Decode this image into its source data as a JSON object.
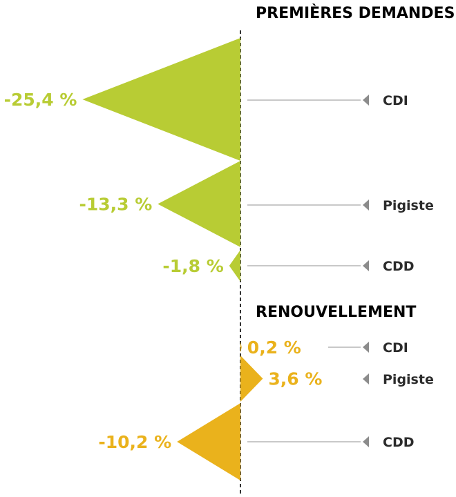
{
  "colors": {
    "green": "#b8cc34",
    "orange": "#eab21c",
    "pointer": "#8c8c8c",
    "leader": "#c8c8c8",
    "axis": "#333333"
  },
  "chart_data": {
    "type": "triangle-bar",
    "sections": [
      {
        "title": "PREMIÈRES DEMANDES",
        "color": "#b8cc34",
        "items": [
          {
            "category": "CDI",
            "value": -25.4,
            "label": "-25,4 %"
          },
          {
            "category": "Pigiste",
            "value": -13.3,
            "label": "-13,3 %"
          },
          {
            "category": "CDD",
            "value": -1.8,
            "label": "-1,8 %"
          }
        ]
      },
      {
        "title": "RENOUVELLEMENT",
        "color": "#eab21c",
        "items": [
          {
            "category": "CDI",
            "value": 0.2,
            "label": "0,2 %"
          },
          {
            "category": "Pigiste",
            "value": 3.6,
            "label": "3,6 %"
          },
          {
            "category": "CDD",
            "value": -10.2,
            "label": "-10,2 %"
          }
        ]
      }
    ]
  }
}
